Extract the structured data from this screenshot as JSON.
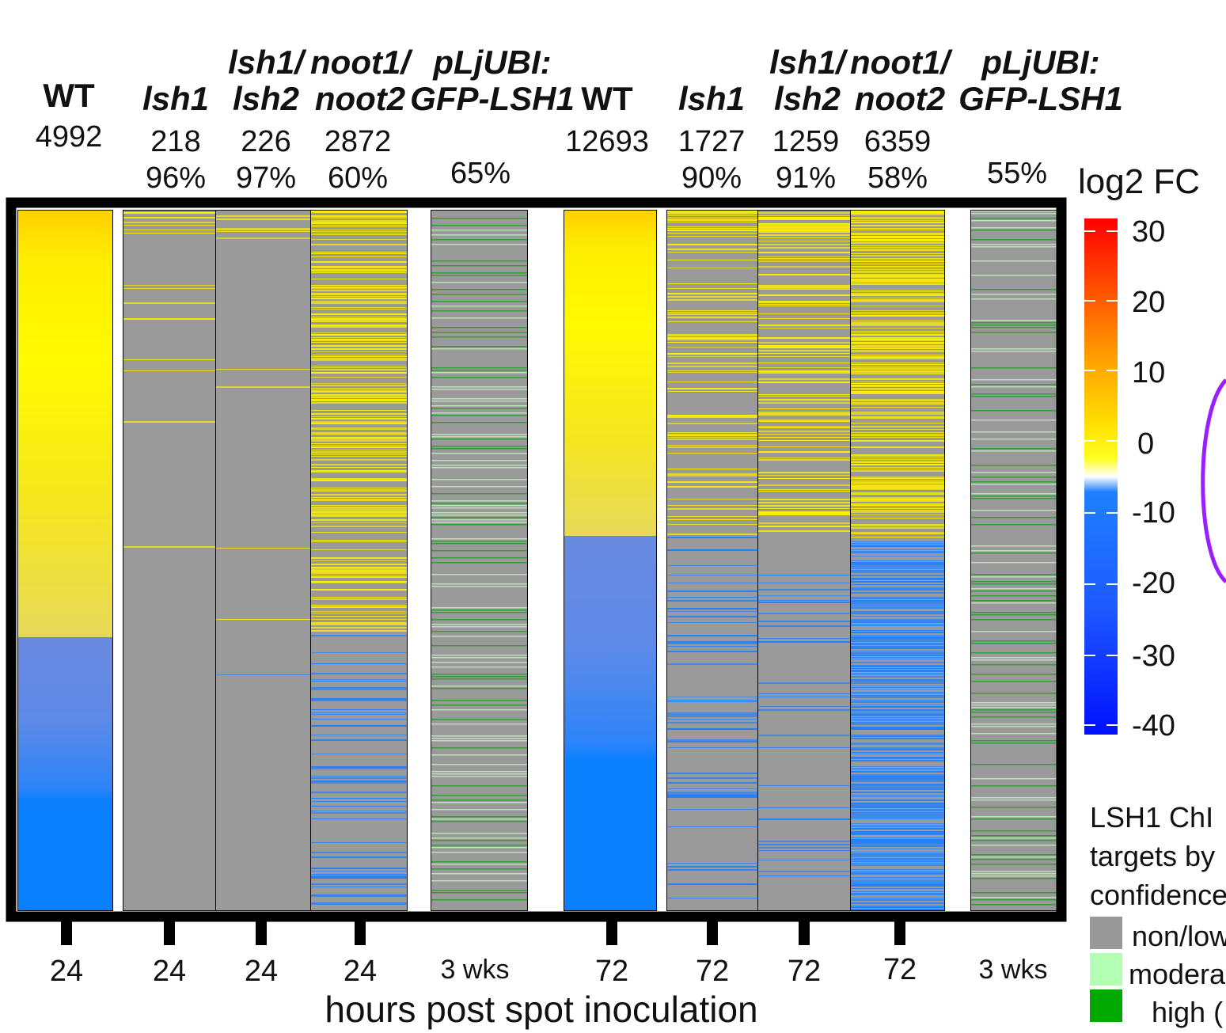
{
  "chart_data": {
    "type": "heatmap",
    "title": "",
    "xlabel": "hours post spot inoculation",
    "colorbar": {
      "title": "log2 FC",
      "ticks": [
        30,
        20,
        10,
        0,
        -10,
        -20,
        -30,
        -40
      ],
      "range": [
        -40,
        30
      ]
    },
    "columns": [
      {
        "line1": "",
        "line2": "WT",
        "genes": "4992",
        "percent": "",
        "time": "24",
        "wt": true
      },
      {
        "line1": "",
        "line2": "lsh1",
        "genes": "218",
        "percent": "96%",
        "time": "24"
      },
      {
        "line1": "lsh1/",
        "line2": "lsh2",
        "genes": "226",
        "percent": "97%",
        "time": "24"
      },
      {
        "line1": "noot1/",
        "line2": "noot2",
        "genes": "2872",
        "percent": "60%",
        "time": "24"
      },
      {
        "line1": "pLjUBI:",
        "line2": "GFP-LSH1",
        "genes": "",
        "percent": "65%",
        "time": "3 wks"
      },
      {
        "line1": "",
        "line2": "WT",
        "genes": "12693",
        "percent": "",
        "time": "72",
        "wt": true
      },
      {
        "line1": "",
        "line2": "lsh1",
        "genes": "1727",
        "percent": "90%",
        "time": "72"
      },
      {
        "line1": "lsh1/",
        "line2": "lsh2",
        "genes": "1259",
        "percent": "91%",
        "time": "72"
      },
      {
        "line1": "noot1/",
        "line2": "noot2",
        "genes": "6359",
        "percent": "58%",
        "time": "72"
      },
      {
        "line1": "pLjUBI:",
        "line2": "GFP-LSH1",
        "genes": "",
        "percent": "55%",
        "time": "3 wks"
      }
    ],
    "wt_split": {
      "wt24_up_fraction": 0.61,
      "wt72_up_fraction": 0.465
    },
    "legend": {
      "title": "LSH1 ChI\ntargets by\nconfidence",
      "items": [
        {
          "label": "non/low",
          "color": "#999999"
        },
        {
          "label": "modera",
          "color": "#b3ffb3"
        },
        {
          "label": "high (",
          "color": "#00aa00"
        }
      ]
    }
  },
  "colors": {
    "up": "#ffef00",
    "down": "#1f7fff",
    "gray": "#9a9a9a",
    "green_high": "#2a9d2a",
    "green_mod": "#c8f0c8"
  }
}
